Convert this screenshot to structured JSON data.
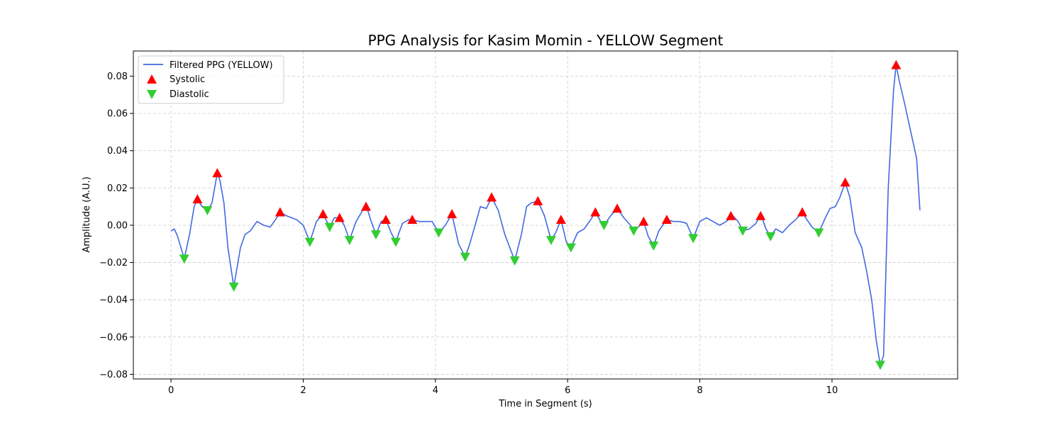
{
  "chart_data": {
    "type": "line",
    "title": "PPG Analysis for Kasim Momin - YELLOW Segment",
    "xlabel": "Time in Segment (s)",
    "ylabel": "Amplitude (A.U.)",
    "xlim": [
      -0.57,
      11.9
    ],
    "ylim": [
      -0.0825,
      0.0935
    ],
    "x_ticks": [
      0,
      2,
      4,
      6,
      8,
      10
    ],
    "x_tick_labels": [
      "0",
      "2",
      "4",
      "6",
      "8",
      "10"
    ],
    "y_ticks": [
      -0.08,
      -0.06,
      -0.04,
      -0.02,
      0.0,
      0.02,
      0.04,
      0.06,
      0.08
    ],
    "y_tick_labels": [
      "−0.08",
      "−0.06",
      "−0.04",
      "−0.02",
      "0.00",
      "0.02",
      "0.04",
      "0.06",
      "0.08"
    ],
    "grid": true,
    "legend_position": "top-left",
    "colors": {
      "line": "#4169e1",
      "systolic": "#ff0000",
      "diastolic": "#32cd32"
    },
    "series": [
      {
        "name": "Filtered PPG (YELLOW)",
        "kind": "line",
        "x": [
          0,
          0.05,
          0.1,
          0.2,
          0.28,
          0.35,
          0.4,
          0.47,
          0.55,
          0.62,
          0.7,
          0.74,
          0.8,
          0.86,
          0.95,
          1.05,
          1.12,
          1.2,
          1.3,
          1.4,
          1.5,
          1.6,
          1.65,
          1.75,
          1.9,
          2.0,
          2.1,
          2.2,
          2.3,
          2.4,
          2.47,
          2.55,
          2.62,
          2.7,
          2.8,
          2.95,
          3.02,
          3.1,
          3.18,
          3.25,
          3.33,
          3.4,
          3.5,
          3.6,
          3.65,
          3.75,
          3.85,
          3.95,
          4.05,
          4.15,
          4.25,
          4.35,
          4.45,
          4.52,
          4.6,
          4.68,
          4.77,
          4.85,
          4.95,
          5.05,
          5.2,
          5.3,
          5.38,
          5.45,
          5.55,
          5.65,
          5.75,
          5.82,
          5.9,
          5.98,
          6.05,
          6.15,
          6.25,
          6.35,
          6.42,
          6.5,
          6.55,
          6.65,
          6.75,
          6.85,
          6.95,
          7.0,
          7.1,
          7.15,
          7.22,
          7.3,
          7.38,
          7.5,
          7.6,
          7.7,
          7.8,
          7.9,
          8.0,
          8.1,
          8.2,
          8.3,
          8.4,
          8.5,
          8.58,
          8.65,
          8.75,
          8.85,
          8.92,
          9.0,
          9.07,
          9.15,
          9.25,
          9.35,
          9.45,
          9.55,
          9.62,
          9.7,
          9.8,
          9.9,
          9.97,
          10.05,
          10.12,
          10.2,
          10.27,
          10.35,
          10.45,
          10.52,
          10.6,
          10.67,
          10.73,
          10.78,
          10.85,
          10.93,
          10.97,
          11.02,
          11.1,
          11.18,
          11.28,
          11.33
        ],
        "values": [
          -0.003,
          -0.002,
          -0.006,
          -0.018,
          -0.005,
          0.01,
          0.014,
          0.01,
          0.008,
          0.012,
          0.028,
          0.024,
          0.012,
          -0.012,
          -0.033,
          -0.012,
          -0.005,
          -0.003,
          0.002,
          0.0,
          -0.001,
          0.004,
          0.007,
          0.005,
          0.003,
          0.0,
          -0.009,
          0.002,
          0.006,
          -0.001,
          0.004,
          0.004,
          0.0,
          -0.008,
          0.002,
          0.011,
          0.003,
          -0.005,
          0.002,
          0.003,
          -0.004,
          -0.009,
          0.001,
          0.003,
          0.003,
          0.002,
          0.002,
          0.002,
          -0.004,
          0.0,
          0.006,
          -0.01,
          -0.017,
          -0.01,
          0.0,
          0.01,
          0.009,
          0.015,
          0.008,
          -0.005,
          -0.019,
          -0.005,
          0.01,
          0.012,
          0.013,
          0.005,
          -0.008,
          -0.004,
          0.003,
          -0.009,
          -0.012,
          -0.004,
          -0.002,
          0.003,
          0.007,
          0.002,
          0.0,
          0.005,
          0.009,
          0.004,
          0.0,
          -0.003,
          0.0,
          0.002,
          -0.006,
          -0.011,
          -0.003,
          0.003,
          0.002,
          0.002,
          0.001,
          -0.007,
          0.002,
          0.004,
          0.002,
          0.0,
          0.002,
          0.005,
          0.002,
          -0.003,
          -0.002,
          0.001,
          0.006,
          -0.002,
          -0.006,
          -0.002,
          -0.004,
          0.0,
          0.003,
          0.007,
          0.003,
          -0.001,
          -0.004,
          0.004,
          0.009,
          0.01,
          0.015,
          0.023,
          0.015,
          -0.004,
          -0.012,
          -0.024,
          -0.04,
          -0.062,
          -0.075,
          -0.07,
          0.02,
          0.072,
          0.086,
          0.077,
          0.065,
          0.052,
          0.036,
          0.008
        ]
      },
      {
        "name": "Systolic",
        "kind": "marker",
        "x": [
          0.4,
          0.7,
          1.65,
          2.3,
          2.55,
          2.95,
          3.25,
          3.65,
          4.25,
          4.85,
          5.55,
          5.9,
          6.42,
          6.75,
          7.15,
          7.5,
          8.47,
          8.92,
          9.55,
          10.2,
          10.97
        ],
        "values": [
          0.014,
          0.028,
          0.007,
          0.006,
          0.004,
          0.01,
          0.003,
          0.003,
          0.006,
          0.015,
          0.013,
          0.003,
          0.007,
          0.009,
          0.002,
          0.003,
          0.005,
          0.005,
          0.007,
          0.023,
          0.086
        ]
      },
      {
        "name": "Diastolic",
        "kind": "marker",
        "x": [
          0.2,
          0.55,
          0.95,
          2.1,
          2.4,
          2.7,
          3.1,
          3.4,
          4.05,
          4.45,
          5.2,
          5.75,
          6.05,
          6.55,
          7.0,
          7.3,
          7.9,
          8.65,
          9.07,
          9.8,
          10.73
        ],
        "values": [
          -0.018,
          0.008,
          -0.033,
          -0.009,
          -0.001,
          -0.008,
          -0.005,
          -0.009,
          -0.004,
          -0.017,
          -0.019,
          -0.008,
          -0.012,
          0.0,
          -0.003,
          -0.011,
          -0.007,
          -0.003,
          -0.006,
          -0.004,
          -0.075
        ]
      }
    ]
  }
}
